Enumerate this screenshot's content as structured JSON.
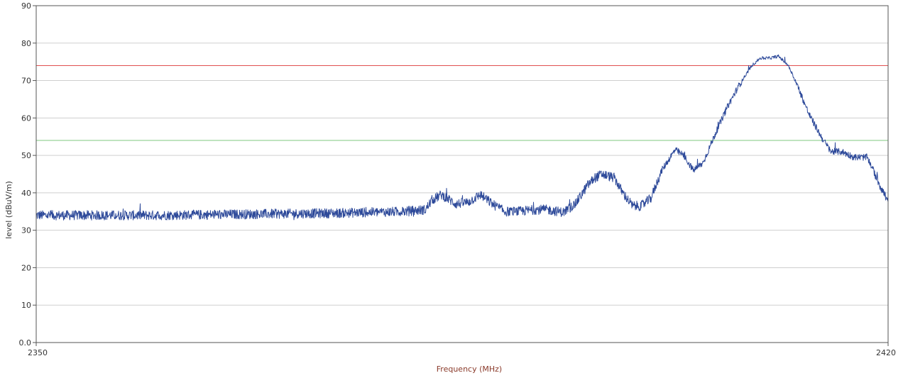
{
  "chart_data": {
    "type": "line",
    "title": "",
    "xlabel": "Frequency (MHz)",
    "ylabel": "level (dBuV/m)",
    "xlim": [
      2350,
      2420
    ],
    "ylim": [
      0,
      90
    ],
    "x_tick_labels": [
      "2350",
      "2420"
    ],
    "y_ticks": [
      0,
      10,
      20,
      30,
      40,
      50,
      60,
      70,
      80,
      90
    ],
    "y_tick_labels": [
      "0.0",
      "10",
      "20",
      "30",
      "40",
      "50",
      "60",
      "70",
      "80",
      "90"
    ],
    "grid": "horizontal",
    "legend": "none",
    "limit_lines": [
      {
        "value": 74,
        "color": "#e05050"
      },
      {
        "value": 54,
        "color": "#7fc97f"
      }
    ],
    "series": [
      {
        "color": "#2e4a9a",
        "x": [
          2350,
          2355,
          2360,
          2365,
          2370,
          2375,
          2380,
          2382,
          2382.5,
          2383.3,
          2384.5,
          2385.5,
          2386.5,
          2387.5,
          2388.5,
          2389.6,
          2391,
          2392,
          2393.3,
          2394.3,
          2395.3,
          2395.9,
          2396.5,
          2397.5,
          2398.2,
          2399,
          2399.7,
          2400.5,
          2401.4,
          2402.5,
          2403.2,
          2404,
          2404.8,
          2405.7,
          2406.8,
          2407.8,
          2408.8,
          2409.5,
          2410.3,
          2411,
          2411.8,
          2412.5,
          2413.5,
          2414.5,
          2415.3,
          2416.2,
          2417.2,
          2418.3,
          2419.2,
          2420
        ],
        "y": [
          34,
          34,
          34,
          34.2,
          34.4,
          34.6,
          35,
          35.5,
          38,
          39.5,
          37,
          37.5,
          39.5,
          37,
          35,
          35,
          35.5,
          35.5,
          34.8,
          37,
          42,
          44,
          45,
          44,
          40,
          36.5,
          36.5,
          38.5,
          46,
          51.5,
          50,
          46,
          48,
          55,
          63,
          69,
          74,
          76,
          76,
          76.5,
          74,
          69,
          61,
          55,
          51,
          51,
          49.5,
          49.5,
          43,
          37.5
        ]
      }
    ],
    "series_2": [
      {
        "x": [
          2419.2,
          2420
        ],
        "y": [
          40,
          41
        ]
      }
    ]
  }
}
